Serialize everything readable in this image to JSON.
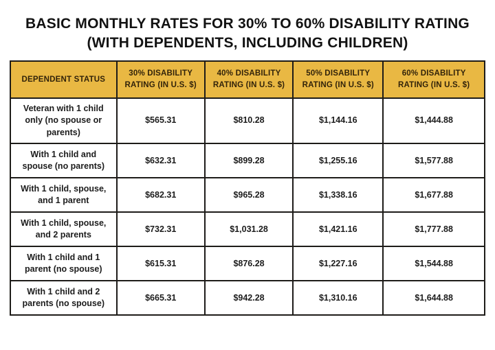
{
  "title": {
    "line1": "BASIC MONTHLY RATES FOR 30% TO 60% DISABILITY RATING",
    "line2": "(WITH DEPENDENTS, INCLUDING CHILDREN)"
  },
  "colors": {
    "header_background": "#e9b843",
    "header_text": "#32230a",
    "border": "#1d1b18",
    "body_text": "#1c1c1c",
    "page_background": "#ffffff"
  },
  "table": {
    "columns": [
      "DEPENDENT STATUS",
      "30% DISABILITY RATING (IN U.S. $)",
      "40% DISABILITY RATING (IN U.S. $)",
      "50% DISABILITY RATING (IN U.S. $)",
      "60% DISABILITY RATING (IN U.S. $)"
    ],
    "rows": [
      [
        "Veteran with 1 child only (no spouse or parents)",
        "$565.31",
        "$810.28",
        "$1,144.16",
        "$1,444.88"
      ],
      [
        "With 1 child and spouse (no parents)",
        "$632.31",
        "$899.28",
        "$1,255.16",
        "$1,577.88"
      ],
      [
        "With 1 child, spouse, and 1 parent",
        "$682.31",
        "$965.28",
        "$1,338.16",
        "$1,677.88"
      ],
      [
        "With 1 child, spouse, and 2 parents",
        "$732.31",
        "$1,031.28",
        "$1,421.16",
        "$1,777.88"
      ],
      [
        "With 1 child and 1 parent (no spouse)",
        "$615.31",
        "$876.28",
        "$1,227.16",
        "$1,544.88"
      ],
      [
        "With 1 child and 2 parents (no spouse)",
        "$665.31",
        "$942.28",
        "$1,310.16",
        "$1,644.88"
      ]
    ]
  }
}
